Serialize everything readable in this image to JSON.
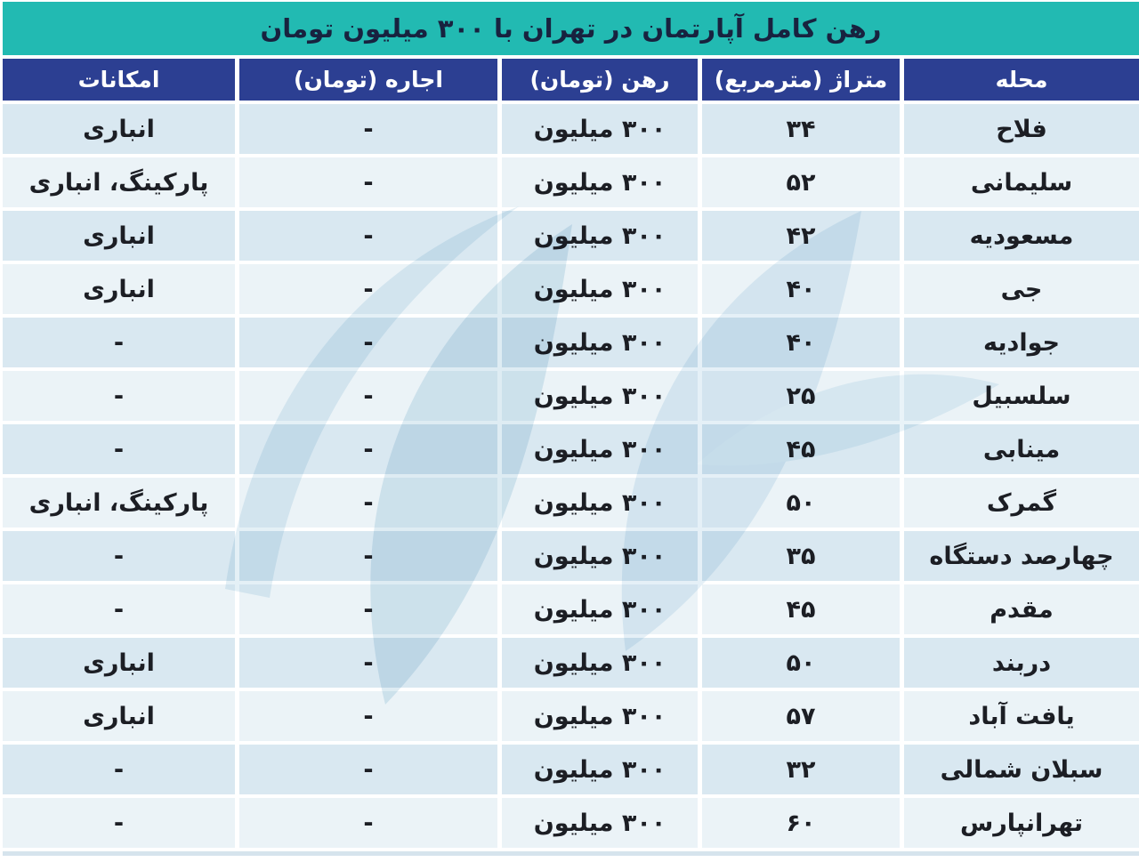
{
  "title": "رهن کامل آپارتمان در تهران با ۳۰۰ میلیون تومان",
  "colors": {
    "title_bar": "#22bab2",
    "header_row": "#2c3f92",
    "row_odd": "#d9e8f1",
    "row_even": "#ebf3f7",
    "title_text": "#18223f",
    "body_text": "#1c1e24",
    "header_text": "#ffffff"
  },
  "chart_data": {
    "type": "table",
    "title": "رهن کامل آپارتمان در تهران با ۳۰۰ میلیون تومان",
    "columns": [
      {
        "key": "mahalleh",
        "label": "محله"
      },
      {
        "key": "metraj",
        "label": "متراژ (مترمربع)"
      },
      {
        "key": "rahn",
        "label": "رهن (تومان)"
      },
      {
        "key": "ejareh",
        "label": "اجاره (تومان)"
      },
      {
        "key": "emkanat",
        "label": "امکانات"
      }
    ],
    "rows": [
      {
        "mahalleh": "فلاح",
        "metraj": "۳۴",
        "rahn": "۳۰۰ میلیون",
        "ejareh": "-",
        "emkanat": "انباری"
      },
      {
        "mahalleh": "سلیمانی",
        "metraj": "۵۲",
        "rahn": "۳۰۰ میلیون",
        "ejareh": "-",
        "emkanat": "پارکینگ، انباری"
      },
      {
        "mahalleh": "مسعودیه",
        "metraj": "۴۲",
        "rahn": "۳۰۰ میلیون",
        "ejareh": "-",
        "emkanat": "انباری"
      },
      {
        "mahalleh": "جی",
        "metraj": "۴۰",
        "rahn": "۳۰۰ میلیون",
        "ejareh": "-",
        "emkanat": "انباری"
      },
      {
        "mahalleh": "جوادیه",
        "metraj": "۴۰",
        "rahn": "۳۰۰ میلیون",
        "ejareh": "-",
        "emkanat": "-"
      },
      {
        "mahalleh": "سلسبیل",
        "metraj": "۲۵",
        "rahn": "۳۰۰ میلیون",
        "ejareh": "-",
        "emkanat": "-"
      },
      {
        "mahalleh": "مینابی",
        "metraj": "۴۵",
        "rahn": "۳۰۰ میلیون",
        "ejareh": "-",
        "emkanat": "-"
      },
      {
        "mahalleh": "گمرک",
        "metraj": "۵۰",
        "rahn": "۳۰۰ میلیون",
        "ejareh": "-",
        "emkanat": "پارکینگ، انباری"
      },
      {
        "mahalleh": "چهارصد دستگاه",
        "metraj": "۳۵",
        "rahn": "۳۰۰ میلیون",
        "ejareh": "-",
        "emkanat": "-"
      },
      {
        "mahalleh": "مقدم",
        "metraj": "۴۵",
        "rahn": "۳۰۰ میلیون",
        "ejareh": "-",
        "emkanat": "-"
      },
      {
        "mahalleh": "دربند",
        "metraj": "۵۰",
        "rahn": "۳۰۰ میلیون",
        "ejareh": "-",
        "emkanat": "انباری"
      },
      {
        "mahalleh": "یافت آباد",
        "metraj": "۵۷",
        "rahn": "۳۰۰ میلیون",
        "ejareh": "-",
        "emkanat": "انباری"
      },
      {
        "mahalleh": "سبلان شمالی",
        "metraj": "۳۲",
        "rahn": "۳۰۰ میلیون",
        "ejareh": "-",
        "emkanat": "-"
      },
      {
        "mahalleh": "تهرانپارس",
        "metraj": "۶۰",
        "rahn": "۳۰۰ میلیون",
        "ejareh": "-",
        "emkanat": "-"
      }
    ]
  }
}
